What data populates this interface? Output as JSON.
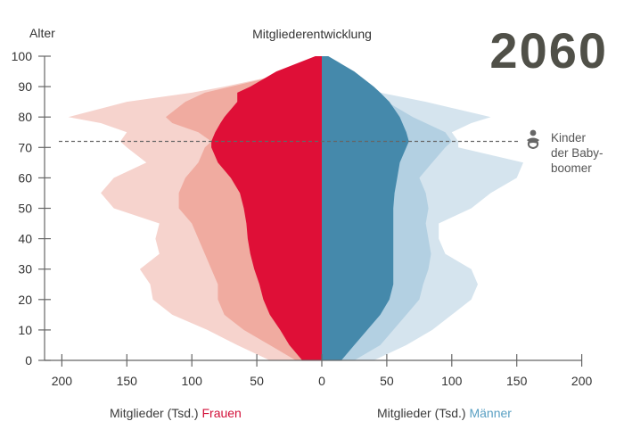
{
  "chart_data": {
    "type": "area",
    "subtype": "population-pyramid",
    "title": "Mitgliederentwicklung",
    "year_label": "2060",
    "ylabel": "Alter",
    "xlabel_left_prefix": "Mitglieder (Tsd.)",
    "xlabel_left_group": "Frauen",
    "xlabel_right_prefix": "Mitglieder (Tsd.)",
    "xlabel_right_group": "Männer",
    "ylim": [
      0,
      100
    ],
    "xlim": [
      -200,
      200
    ],
    "y_ticks": [
      0,
      10,
      20,
      30,
      40,
      50,
      60,
      70,
      80,
      90,
      100
    ],
    "x_ticks": [
      200,
      150,
      100,
      50,
      0,
      50,
      100,
      150,
      200
    ],
    "grid": false,
    "annotation": {
      "age": 72,
      "icon": "baby-icon",
      "lines": [
        "Kinder",
        "der Baby-",
        "boomer"
      ]
    },
    "ages": [
      0,
      5,
      10,
      15,
      20,
      25,
      30,
      35,
      40,
      45,
      50,
      55,
      60,
      65,
      70,
      72,
      75,
      78,
      80,
      85,
      88,
      90,
      95,
      100
    ],
    "series": [
      {
        "name": "Frauen (früher, hell)",
        "side": "left",
        "color": "#f6d3cd",
        "values": [
          40,
          65,
          88,
          115,
          130,
          132,
          140,
          125,
          128,
          125,
          160,
          170,
          160,
          135,
          150,
          155,
          150,
          170,
          195,
          150,
          100,
          75,
          20,
          0
        ]
      },
      {
        "name": "Frauen (mittel)",
        "side": "left",
        "color": "#f0aba0",
        "values": [
          20,
          40,
          60,
          75,
          80,
          80,
          85,
          90,
          95,
          100,
          110,
          110,
          105,
          95,
          90,
          85,
          95,
          115,
          120,
          105,
          90,
          70,
          20,
          0
        ]
      },
      {
        "name": "Frauen 2060",
        "side": "left",
        "color": "#df0f37",
        "values": [
          15,
          25,
          32,
          40,
          45,
          48,
          52,
          55,
          57,
          58,
          60,
          63,
          70,
          80,
          85,
          85,
          82,
          78,
          75,
          65,
          65,
          55,
          35,
          5
        ]
      },
      {
        "name": "Männer (früher, hell)",
        "side": "right",
        "color": "#d5e4ee",
        "values": [
          40,
          65,
          85,
          100,
          115,
          120,
          115,
          95,
          90,
          90,
          115,
          130,
          150,
          155,
          105,
          105,
          100,
          115,
          130,
          80,
          45,
          30,
          10,
          0
        ]
      },
      {
        "name": "Männer (mittel)",
        "side": "right",
        "color": "#b3d0e2",
        "values": [
          25,
          45,
          55,
          65,
          75,
          78,
          82,
          84,
          82,
          80,
          82,
          80,
          75,
          85,
          95,
          100,
          95,
          80,
          70,
          50,
          40,
          30,
          10,
          0
        ]
      },
      {
        "name": "Männer 2060",
        "side": "right",
        "color": "#4589ab",
        "values": [
          15,
          25,
          35,
          45,
          52,
          55,
          55,
          55,
          55,
          55,
          55,
          56,
          58,
          60,
          65,
          67,
          65,
          62,
          60,
          52,
          45,
          40,
          25,
          5
        ]
      }
    ]
  }
}
